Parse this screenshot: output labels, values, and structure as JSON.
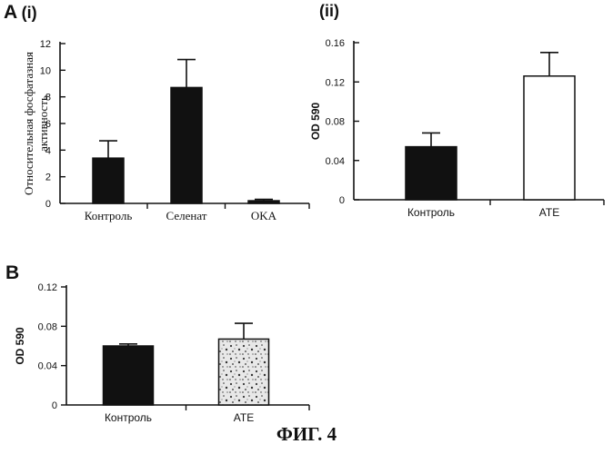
{
  "figure": {
    "caption": "ФИГ. 4",
    "panels": [
      {
        "letter": "A",
        "sub": "(i)"
      },
      {
        "letter": "",
        "sub": "(ii)"
      },
      {
        "letter": "B",
        "sub": ""
      }
    ]
  },
  "colors": {
    "ink": "#111111",
    "empty_bar": "#ffffff",
    "speckled_bar": "#e8e8e8"
  },
  "chart_data": [
    {
      "type": "bar",
      "categories": [
        "Контроль",
        "Селенат",
        "OKA"
      ],
      "values": [
        3.4,
        8.7,
        0.2
      ],
      "errors": [
        1.3,
        2.1,
        0.1
      ],
      "bar_fill": [
        "dark",
        "dark",
        "dark"
      ],
      "title": "",
      "xlabel": "",
      "ylabel": "Относительная фосфатазная активность",
      "ylim": [
        0,
        12
      ],
      "yticks": [
        "0",
        "2",
        "4",
        "6",
        "8",
        "10",
        "12"
      ],
      "grid": false,
      "legend": "none"
    },
    {
      "type": "bar",
      "categories": [
        "Контроль",
        "ATE"
      ],
      "values": [
        0.054,
        0.126
      ],
      "errors": [
        0.014,
        0.024
      ],
      "bar_fill": [
        "dark",
        "white"
      ],
      "title": "",
      "xlabel": "",
      "ylabel": "OD 590",
      "ylim": [
        0,
        0.16
      ],
      "yticks": [
        "0",
        "0.04",
        "0.08",
        "0.12",
        "0.16"
      ],
      "grid": false,
      "legend": "none"
    },
    {
      "type": "bar",
      "categories": [
        "Контроль",
        "ATE"
      ],
      "values": [
        0.06,
        0.067
      ],
      "errors": [
        0.002,
        0.016
      ],
      "bar_fill": [
        "dark",
        "speckled"
      ],
      "title": "",
      "xlabel": "",
      "ylabel": "OD 590",
      "ylim": [
        0,
        0.12
      ],
      "yticks": [
        "0",
        "0.04",
        "0.08",
        "0.12"
      ],
      "grid": false,
      "legend": "none"
    }
  ]
}
